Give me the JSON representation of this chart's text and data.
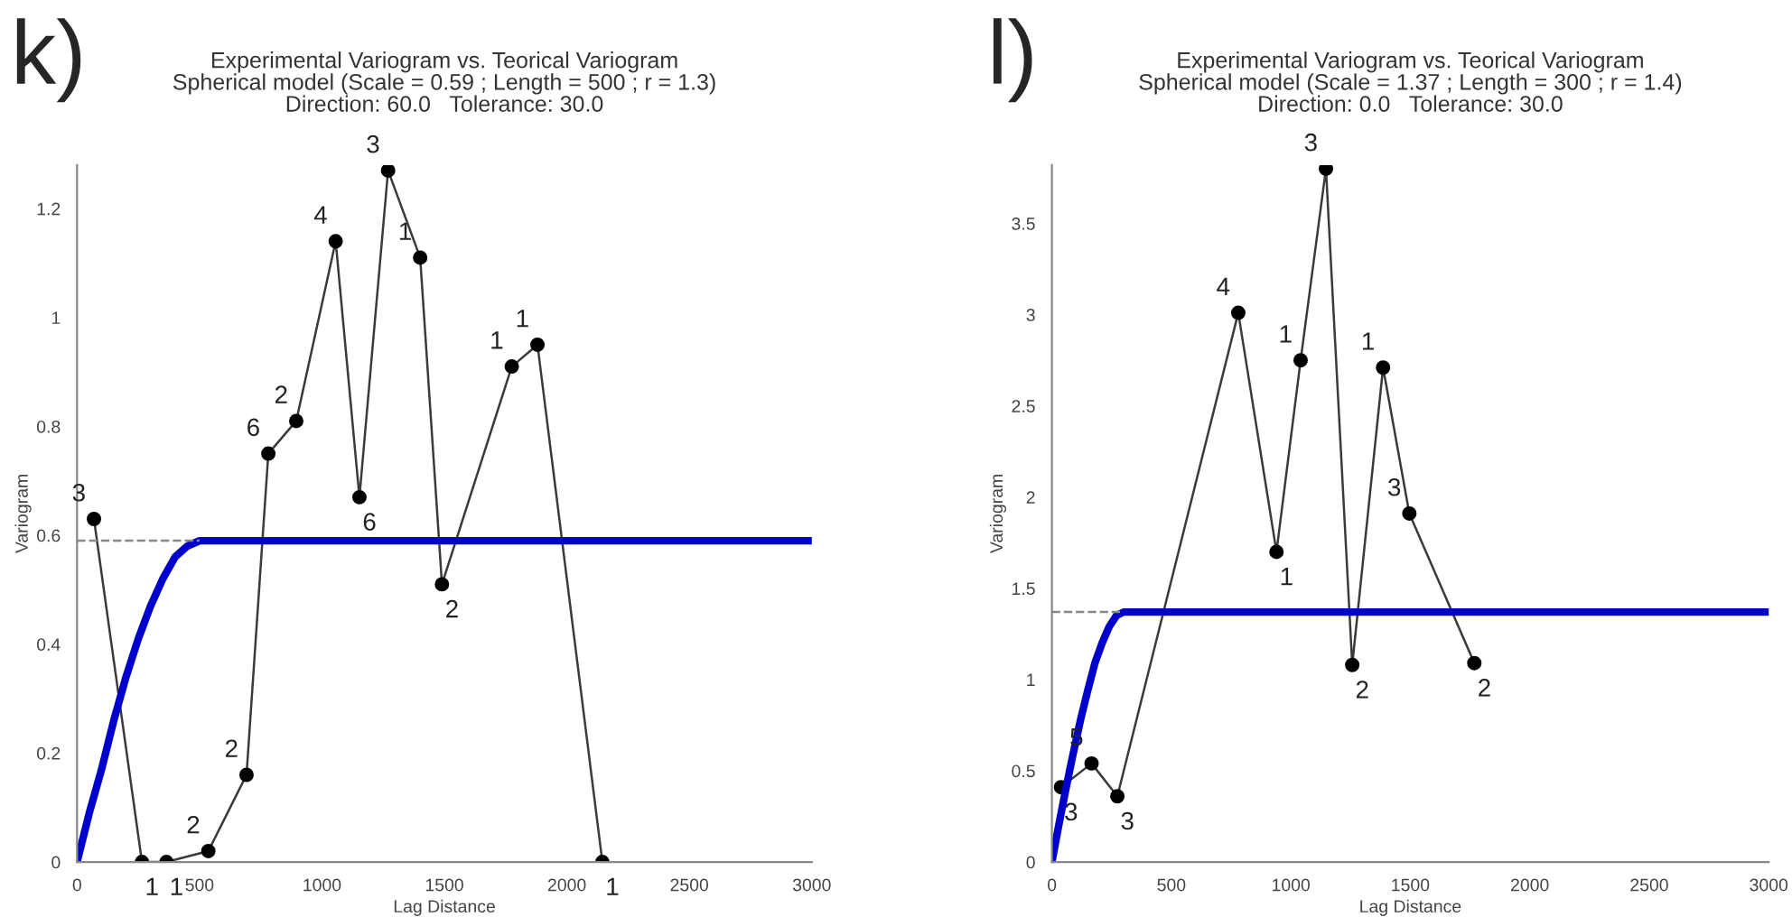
{
  "chart_data": [
    {
      "type": "line",
      "title": "Experimental Variogram vs. Teorical Variogram",
      "subtitle": "Spherical model (Scale = 0.59 ; Length = 500 ; r = 1.3)\nDirection: 60.0   Tolerance: 30.0",
      "xlabel": "Lag Distance",
      "ylabel": "Variogram",
      "xlim": [
        0,
        3000
      ],
      "ylim": [
        0,
        1.28
      ],
      "xticks": [
        0,
        500,
        1000,
        1500,
        2000,
        2500,
        3000
      ],
      "yticks": [
        0,
        0.2,
        0.4,
        0.6,
        0.8,
        1,
        1.2
      ],
      "grid": false,
      "series": [
        {
          "color": "#3a3a3a",
          "marker": "circle",
          "line_style": "solid",
          "x": [
            69,
            265,
            365,
            536,
            692,
            781,
            895,
            1056,
            1153,
            1270,
            1401,
            1490,
            1775,
            1880,
            2145
          ],
          "values": [
            0.63,
            0,
            0,
            0.02,
            0.16,
            0.75,
            0.81,
            1.14,
            0.67,
            1.27,
            1.11,
            0.51,
            0.91,
            0.95,
            0
          ]
        },
        {
          "color": "#0000cc",
          "marker": "none",
          "line_style": "solid",
          "x": [
            0,
            50,
            100,
            150,
            200,
            250,
            300,
            350,
            400,
            450,
            500,
            3000
          ],
          "values": [
            0,
            0.09,
            0.17,
            0.26,
            0.34,
            0.41,
            0.47,
            0.52,
            0.56,
            0.58,
            0.59,
            0.59
          ]
        },
        {
          "color": "#888888",
          "marker": "none",
          "line_style": "dashed",
          "x": [
            0,
            500
          ],
          "values": [
            0.59,
            0.59
          ]
        }
      ],
      "annotations": [
        "k)",
        {
          "text": "3",
          "x": 69,
          "y": 0.63
        },
        {
          "text": "1",
          "x": 265,
          "y": 0
        },
        {
          "text": "1",
          "x": 365,
          "y": 0
        },
        {
          "text": "2",
          "x": 536,
          "y": 0.02
        },
        {
          "text": "2",
          "x": 692,
          "y": 0.16
        },
        {
          "text": "6",
          "x": 781,
          "y": 0.75
        },
        {
          "text": "2",
          "x": 895,
          "y": 0.81
        },
        {
          "text": "4",
          "x": 1056,
          "y": 1.14
        },
        {
          "text": "6",
          "x": 1153,
          "y": 0.67
        },
        {
          "text": "3",
          "x": 1270,
          "y": 1.27
        },
        {
          "text": "1",
          "x": 1401,
          "y": 1.11
        },
        {
          "text": "2",
          "x": 1490,
          "y": 0.51
        },
        {
          "text": "1",
          "x": 1775,
          "y": 0.91
        },
        {
          "text": "1",
          "x": 1880,
          "y": 0.95
        },
        {
          "text": "1",
          "x": 2145,
          "y": 0
        }
      ]
    },
    {
      "type": "line",
      "title": "Experimental Variogram vs. Teorical Variogram",
      "subtitle": "Spherical model (Scale = 1.37 ; Length = 300 ; r = 1.4)\nDirection: 0.0   Tolerance: 30.0",
      "xlabel": "Lag Distance",
      "ylabel": "Variogram",
      "xlim": [
        0,
        3000
      ],
      "ylim": [
        0,
        3.82
      ],
      "xticks": [
        0,
        500,
        1000,
        1500,
        2000,
        2500,
        3000
      ],
      "yticks": [
        0,
        0.5,
        1,
        1.5,
        2,
        2.5,
        3,
        3.5
      ],
      "grid": false,
      "series": [
        {
          "color": "#3a3a3a",
          "marker": "circle",
          "line_style": "solid",
          "x": [
            38,
            166,
            274,
            780,
            940,
            1041,
            1147,
            1257,
            1386,
            1496,
            1768
          ],
          "values": [
            0.41,
            0.54,
            0.36,
            3.01,
            1.7,
            2.75,
            3.8,
            1.08,
            2.71,
            1.91,
            1.09
          ]
        },
        {
          "color": "#0000cc",
          "marker": "none",
          "line_style": "solid",
          "x": [
            0,
            30,
            60,
            90,
            120,
            150,
            180,
            210,
            240,
            270,
            300,
            3000
          ],
          "values": [
            0,
            0.21,
            0.41,
            0.6,
            0.78,
            0.94,
            1.09,
            1.2,
            1.29,
            1.35,
            1.37,
            1.37
          ]
        },
        {
          "color": "#888888",
          "marker": "none",
          "line_style": "dashed",
          "x": [
            0,
            300
          ],
          "values": [
            1.37,
            1.37
          ]
        }
      ],
      "annotations": [
        "l)",
        {
          "text": "3",
          "x": 38,
          "y": 0.41
        },
        {
          "text": "5",
          "x": 166,
          "y": 0.54
        },
        {
          "text": "3",
          "x": 274,
          "y": 0.36
        },
        {
          "text": "4",
          "x": 780,
          "y": 3.01
        },
        {
          "text": "1",
          "x": 940,
          "y": 1.7
        },
        {
          "text": "1",
          "x": 1041,
          "y": 2.75
        },
        {
          "text": "3",
          "x": 1147,
          "y": 3.8
        },
        {
          "text": "2",
          "x": 1257,
          "y": 1.08
        },
        {
          "text": "1",
          "x": 1386,
          "y": 2.71
        },
        {
          "text": "3",
          "x": 1496,
          "y": 1.91
        },
        {
          "text": "2",
          "x": 1768,
          "y": 1.09
        }
      ]
    }
  ]
}
